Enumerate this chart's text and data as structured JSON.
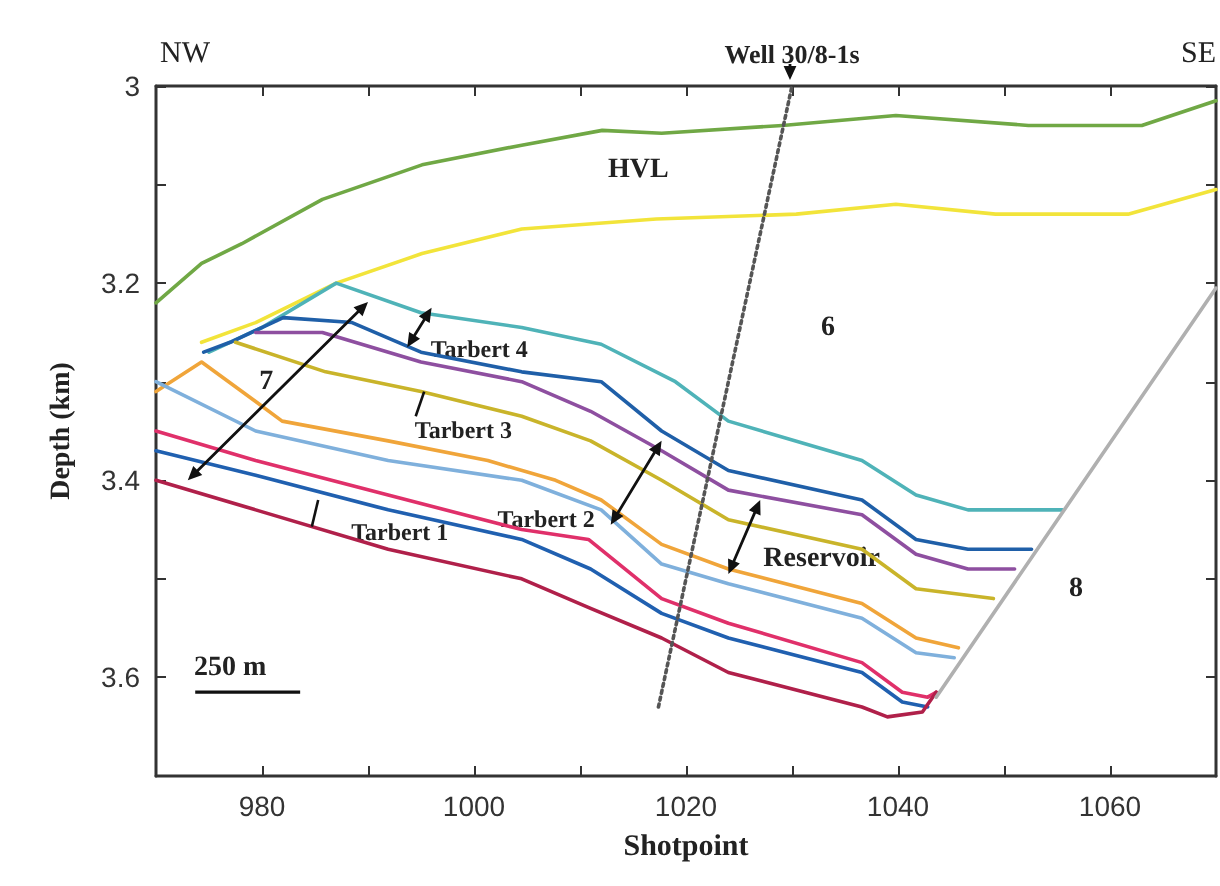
{
  "chart_data": {
    "type": "line",
    "xlabel": "Shotpoint",
    "ylabel": "Depth (km)",
    "xlim": [
      970,
      1070
    ],
    "ylim": [
      3.7,
      3.0
    ],
    "xticks": [
      980,
      {
        "value": 990,
        "label": null
      },
      1000,
      {
        "value": 1010,
        "label": null
      },
      1020,
      {
        "value": 1030,
        "label": null
      },
      1040,
      {
        "value": 1050,
        "label": null
      },
      1060
    ],
    "yticks": [
      3.0,
      {
        "value": 3.1,
        "label": null
      },
      3.2,
      {
        "value": 3.3,
        "label": null
      },
      3.4,
      {
        "value": 3.5,
        "label": null
      },
      3.6
    ],
    "grid": false,
    "marker": "none",
    "line_style": "solid",
    "series": [
      {
        "color": "#70a845",
        "x": [
          970,
          974.3,
          978.1,
          985.7,
          995.1,
          1004.5,
          1012.1,
          1017.7,
          1029.1,
          1039.8,
          1052.3,
          1063,
          1070
        ],
        "values": [
          3.22,
          3.18,
          3.16,
          3.115,
          3.08,
          3.06,
          3.045,
          3.048,
          3.04,
          3.03,
          3.04,
          3.04,
          3.015
        ]
      },
      {
        "color": "#f2e43a",
        "x": [
          974.3,
          979.4,
          987,
          995.1,
          1004.5,
          1017.2,
          1030.4,
          1039.8,
          1049.2,
          1061.7,
          1070
        ],
        "values": [
          3.26,
          3.24,
          3.2,
          3.17,
          3.145,
          3.135,
          3.13,
          3.12,
          3.13,
          3.13,
          3.105
        ]
      },
      {
        "color": "#4fb3b8",
        "x": [
          975,
          980,
          987,
          995,
          1004.5,
          1012,
          1019,
          1024,
          1036.6,
          1041.7,
          1046.6,
          1055.5
        ],
        "values": [
          3.27,
          3.245,
          3.2,
          3.23,
          3.245,
          3.262,
          3.3,
          3.34,
          3.38,
          3.415,
          3.43,
          3.43
        ]
      },
      {
        "color": "#1f5fa8",
        "x": [
          974.5,
          977,
          982,
          988.5,
          995,
          1004.5,
          1012,
          1017.7,
          1024,
          1036.6,
          1041.7,
          1046.6,
          1052.6
        ],
        "values": [
          3.27,
          3.26,
          3.235,
          3.24,
          3.27,
          3.29,
          3.3,
          3.35,
          3.39,
          3.42,
          3.46,
          3.47,
          3.47
        ]
      },
      {
        "color": "#8e4fa0",
        "x": [
          979.4,
          985.7,
          995,
          1004.5,
          1011,
          1017.7,
          1024,
          1036.6,
          1041.7,
          1046.6,
          1051
        ],
        "values": [
          3.25,
          3.25,
          3.28,
          3.3,
          3.33,
          3.37,
          3.41,
          3.435,
          3.475,
          3.49,
          3.49
        ]
      },
      {
        "color": "#c9b42a",
        "x": [
          977.5,
          986,
          995,
          1004.5,
          1011,
          1017.7,
          1024,
          1036.6,
          1041.7,
          1049
        ],
        "values": [
          3.26,
          3.29,
          3.31,
          3.335,
          3.36,
          3.4,
          3.44,
          3.47,
          3.51,
          3.52
        ]
      },
      {
        "color": "#f0a53a",
        "x": [
          970,
          974.3,
          979.4,
          981.9,
          991.9,
          1001.3,
          1007.7,
          1012,
          1017.7,
          1024,
          1036.6,
          1041.7,
          1045.7
        ],
        "values": [
          3.31,
          3.28,
          3.32,
          3.34,
          3.36,
          3.38,
          3.4,
          3.42,
          3.465,
          3.49,
          3.525,
          3.56,
          3.57
        ]
      },
      {
        "color": "#7fb0dc",
        "x": [
          970,
          979.4,
          991.9,
          1004.5,
          1012,
          1017.7,
          1024,
          1036.6,
          1041.7,
          1045.3
        ],
        "values": [
          3.3,
          3.35,
          3.38,
          3.4,
          3.43,
          3.485,
          3.505,
          3.54,
          3.575,
          3.58
        ]
      },
      {
        "color": "#e0306a",
        "x": [
          970,
          979.4,
          991.9,
          1004.5,
          1010.8,
          1017.7,
          1024,
          1036.6,
          1040.4,
          1042.8,
          1043.6
        ],
        "values": [
          3.35,
          3.38,
          3.415,
          3.45,
          3.46,
          3.52,
          3.545,
          3.585,
          3.615,
          3.62,
          3.615
        ]
      },
      {
        "color": "#2060b0",
        "x": [
          970,
          979.4,
          991.9,
          1004.5,
          1011,
          1017.7,
          1024,
          1036.6,
          1040.4,
          1042.8
        ],
        "values": [
          3.37,
          3.395,
          3.43,
          3.46,
          3.49,
          3.535,
          3.56,
          3.595,
          3.625,
          3.63
        ]
      },
      {
        "color": "#b0204a",
        "x": [
          970,
          979.4,
          991.9,
          1004.5,
          1011,
          1017.7,
          1024,
          1036.6,
          1039,
          1042.3,
          1043.6
        ],
        "values": [
          3.4,
          3.43,
          3.47,
          3.5,
          3.53,
          3.56,
          3.595,
          3.63,
          3.64,
          3.635,
          3.615
        ]
      },
      {
        "color": "#b0b0b0",
        "x": [
          1043.6,
          1070
        ],
        "values": [
          3.62,
          3.205
        ]
      },
      {
        "color": "#555555",
        "line_style": "dotted",
        "x": [
          1017.4,
          1030
        ],
        "values": [
          3.63,
          3.0
        ]
      }
    ],
    "annotations": [
      "NW",
      "SE",
      "HVL",
      "6",
      "7",
      {
        "text": "Tarbert 2",
        "x": 1012.9,
        "y": 3.445
      },
      "Reservoir",
      "8",
      "250 m",
      {
        "text": "Well 30/8-1s",
        "x": 1030,
        "y": 3.0
      },
      "Tarbert 4",
      "Tarbert 3",
      "Tarbert 1"
    ]
  }
}
